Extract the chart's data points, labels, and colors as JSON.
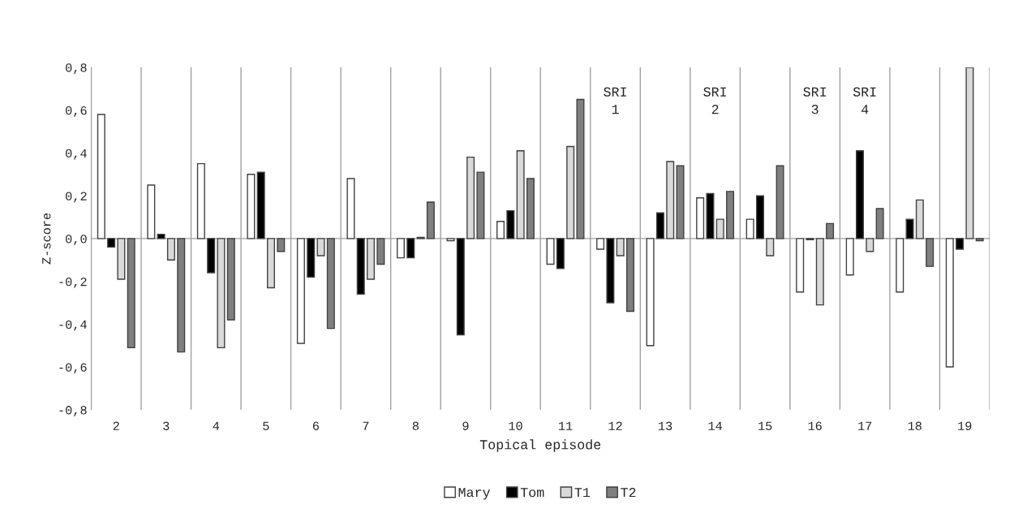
{
  "chart_data": {
    "type": "bar",
    "xlabel": "Topical episode",
    "ylabel": "Z-score",
    "categories": [
      "2",
      "3",
      "4",
      "5",
      "6",
      "7",
      "8",
      "9",
      "10",
      "11",
      "12",
      "13",
      "14",
      "15",
      "16",
      "17",
      "18",
      "19"
    ],
    "series": [
      {
        "name": "Mary",
        "color": "#ffffff",
        "values": [
          0.58,
          0.25,
          0.35,
          0.3,
          -0.49,
          0.28,
          -0.09,
          -0.01,
          0.08,
          -0.12,
          -0.05,
          -0.5,
          0.19,
          0.09,
          -0.25,
          -0.17,
          -0.25,
          -0.6
        ]
      },
      {
        "name": "Tom",
        "color": "#000000",
        "values": [
          -0.04,
          0.02,
          -0.16,
          0.31,
          -0.18,
          -0.26,
          -0.09,
          -0.45,
          0.13,
          -0.14,
          -0.3,
          0.12,
          0.21,
          0.2,
          -0.005,
          0.41,
          0.09,
          -0.05
        ]
      },
      {
        "name": "T1",
        "color": "#d9d9d9",
        "values": [
          -0.19,
          -0.1,
          -0.51,
          -0.23,
          -0.08,
          -0.19,
          0.005,
          0.38,
          0.41,
          0.43,
          -0.08,
          0.36,
          0.09,
          -0.08,
          -0.31,
          -0.06,
          0.18,
          0.8
        ]
      },
      {
        "name": "T2",
        "color": "#7f7f7f",
        "values": [
          -0.51,
          -0.53,
          -0.38,
          -0.06,
          -0.42,
          -0.12,
          0.17,
          0.31,
          0.28,
          0.65,
          -0.34,
          0.34,
          0.22,
          0.34,
          0.07,
          0.14,
          -0.13,
          -0.01
        ]
      }
    ],
    "ylim": [
      -0.8,
      0.8
    ],
    "yticks": [
      {
        "value": -0.8,
        "label": "-0,8"
      },
      {
        "value": -0.6,
        "label": "-0,6"
      },
      {
        "value": -0.4,
        "label": "-0,4"
      },
      {
        "value": -0.2,
        "label": "-0,2"
      },
      {
        "value": 0,
        "label": "0,0"
      },
      {
        "value": 0.2,
        "label": "0,2"
      },
      {
        "value": 0.4,
        "label": "0,4"
      },
      {
        "value": 0.6,
        "label": "0,6"
      },
      {
        "value": 0.8,
        "label": "0,8"
      }
    ],
    "annotations": [
      "SRI\n1",
      "SRI\n2",
      "SRI\n3",
      "SRI\n4"
    ],
    "grid": "x",
    "legend": "bottom"
  }
}
